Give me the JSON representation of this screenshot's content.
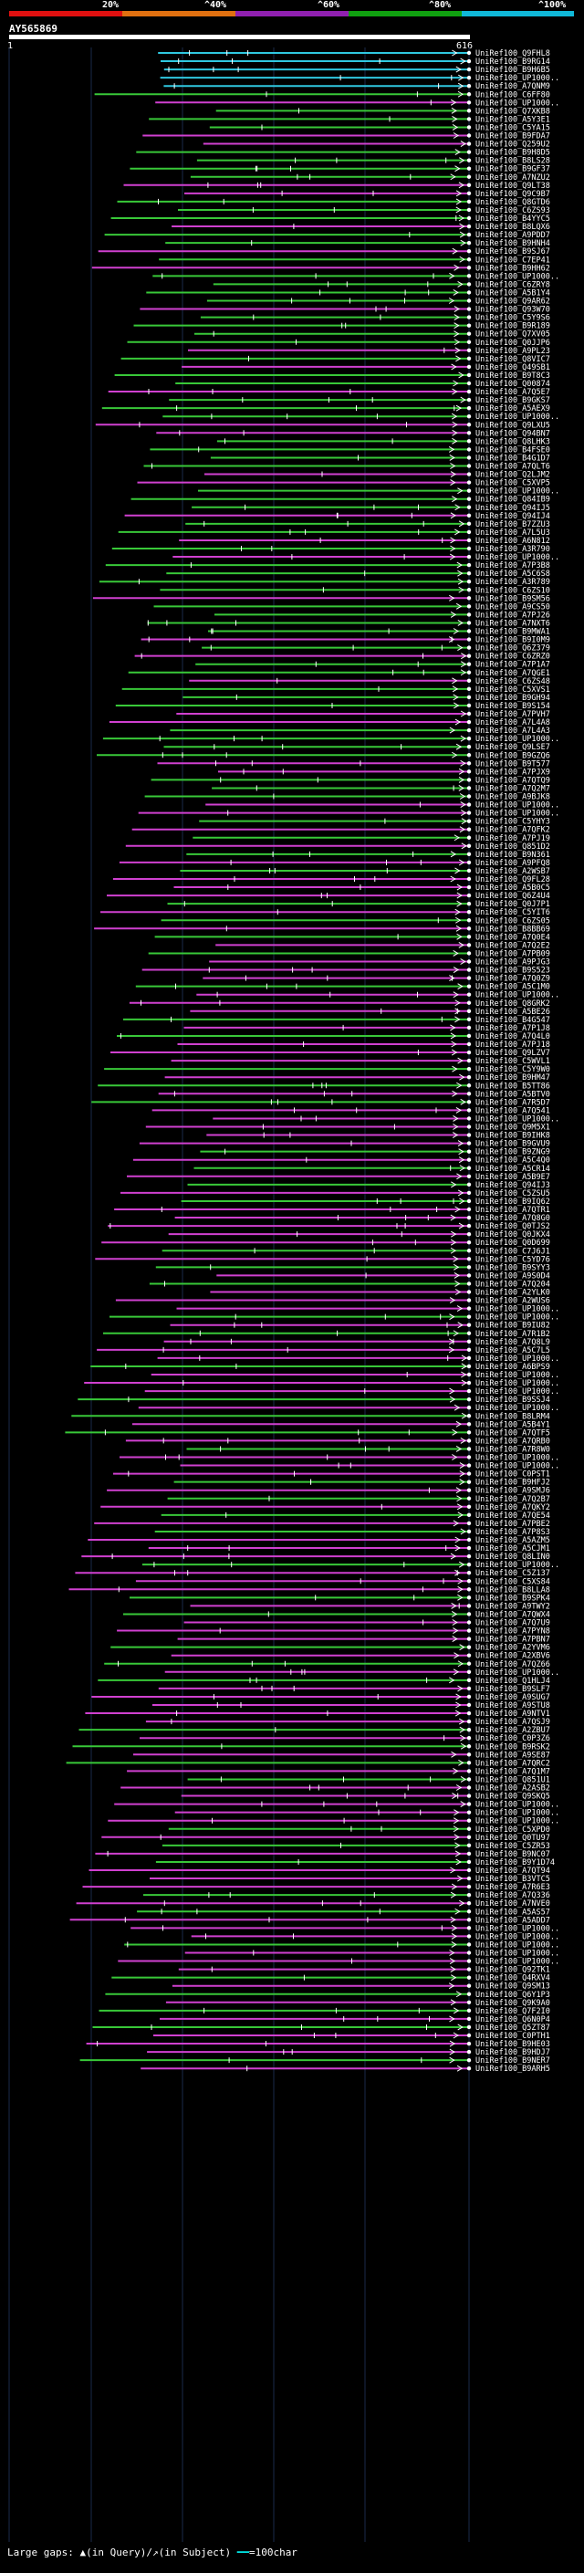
{
  "scale": {
    "labels": [
      "20%",
      "^40%",
      "^60%",
      "^80%",
      "^100%"
    ],
    "colors": [
      "#e01010",
      "#e07010",
      "#9020b0",
      "#10a010",
      "#10b8d8"
    ]
  },
  "query": {
    "name": "AY565869",
    "start": "1",
    "end": "616"
  },
  "hit_colors": {
    "cyan": "#30c8e0",
    "green": "#38c838",
    "magenta": "#d040d0",
    "white": "#ffffff"
  },
  "hits": [
    "UniRef100_Q9FHL8",
    "UniRef100_B9RG14",
    "UniRef100_B9H6B5",
    "UniRef100_UP1000..",
    "UniRef100_A7QNM9",
    "UniRef100_C6FF80",
    "UniRef100_UP1000..",
    "UniRef100_Q7XKB8",
    "UniRef100_A5Y3E1",
    "UniRef100_C5YA15",
    "UniRef100_B9FDA7",
    "UniRef100_Q259U2",
    "UniRef100_B9H8D5",
    "UniRef100_B8LS28",
    "UniRef100_B9GF37",
    "UniRef100_A7NZU2",
    "UniRef100_Q9LT38",
    "UniRef100_Q9C9B7",
    "UniRef100_Q8GTD6",
    "UniRef100_C6ZS93",
    "UniRef100_B4YYC5",
    "UniRef100_B8LQX6",
    "UniRef100_A9PDD7",
    "UniRef100_B9HNH4",
    "UniRef100_B9SJ67",
    "UniRef100_C7EP41",
    "UniRef100_B9HH62",
    "UniRef100_UP1000..",
    "UniRef100_C6ZRY8",
    "UniRef100_A5B1Y4",
    "UniRef100_Q9AR62",
    "UniRef100_Q93W70",
    "UniRef100_C5Y9S6",
    "UniRef100_B9R189",
    "UniRef100_Q7XV05",
    "UniRef100_Q0JJP6",
    "UniRef100_A9PL23",
    "UniRef100_Q8VIC7",
    "UniRef100_Q49SB1",
    "UniRef100_B9T8C3",
    "UniRef100_Q00874",
    "UniRef100_A7Q5E7",
    "UniRef100_B9GKS7",
    "UniRef100_A5AEX9",
    "UniRef100_UP1000..",
    "UniRef100_Q9LXU5",
    "UniRef100_Q94BN7",
    "UniRef100_Q8LHK3",
    "UniRef100_B4FSE0",
    "UniRef100_B4G1D7",
    "UniRef100_A7QLT6",
    "UniRef100_Q2LJM2",
    "UniRef100_C5XVP5",
    "UniRef100_UP1000..",
    "UniRef100_Q84IB9",
    "UniRef100_Q94IJ5",
    "UniRef100_Q94IJ4",
    "UniRef100_B7ZZU3",
    "UniRef100_A7L5U3",
    "UniRef100_A6N812",
    "UniRef100_A3R790",
    "UniRef100_UP1000..",
    "UniRef100_A7P3B8",
    "UniRef100_A5C6S8",
    "UniRef100_A3R789",
    "UniRef100_C6ZS10",
    "UniRef100_B9SM56",
    "UniRef100_A9CS50",
    "UniRef100_A7PJ26",
    "UniRef100_A7NXT6",
    "UniRef100_B9MWA1",
    "UniRef100_B9I0M9",
    "UniRef100_Q6Z379",
    "UniRef100_C6ZRZ0",
    "UniRef100_A7P1A7",
    "UniRef100_A7QGE1",
    "UniRef100_C6ZS48",
    "UniRef100_C5XVS1",
    "UniRef100_B9GH94",
    "UniRef100_B9S154",
    "UniRef100_A7PVH7",
    "UniRef100_A7L4A8",
    "UniRef100_A7L4A3",
    "UniRef100_UP1000..",
    "UniRef100_Q9LSE7",
    "UniRef100_B9GZQ6",
    "UniRef100_B9T577",
    "UniRef100_A7PJX9",
    "UniRef100_A7QTQ9",
    "UniRef100_A7Q2M7",
    "UniRef100_A9BJK8",
    "UniRef100_UP1000..",
    "UniRef100_UP1000..",
    "UniRef100_C5YHY3",
    "UniRef100_A7QFK2",
    "UniRef100_A7PJ19",
    "UniRef100_Q851D2",
    "UniRef100_B9N361",
    "UniRef100_A9PFQ8",
    "UniRef100_A2WSB7",
    "UniRef100_Q9FL28",
    "UniRef100_A5B0C5",
    "UniRef100_Q6Z4U4",
    "UniRef100_Q0J7P1",
    "UniRef100_C5YIT6",
    "UniRef100_C6ZS05",
    "UniRef100_B8BB69",
    "UniRef100_A7Q0E4",
    "UniRef100_A7Q2E2",
    "UniRef100_A7PB09",
    "UniRef100_A9PJG3",
    "UniRef100_B9S523",
    "UniRef100_A7Q0Z9",
    "UniRef100_A5C1M0",
    "UniRef100_UP1000..",
    "UniRef100_Q8GRK2",
    "UniRef100_A5BE26",
    "UniRef100_B4G547",
    "UniRef100_A7P1J8",
    "UniRef100_A7Q4L0",
    "UniRef100_A7PJ18",
    "UniRef100_Q9LZV7",
    "UniRef100_C5WVL1",
    "UniRef100_C5Y9W0",
    "UniRef100_B9HM47",
    "UniRef100_B5TT86",
    "UniRef100_A5BTV0",
    "UniRef100_A7R5D7",
    "UniRef100_A7Q541",
    "UniRef100_UP1000..",
    "UniRef100_Q9M5X1",
    "UniRef100_B9IHK8",
    "UniRef100_B9GVU9",
    "UniRef100_B9ZNG9",
    "UniRef100_A5C4Q0",
    "UniRef100_A5CR14",
    "UniRef100_A5B9E7",
    "UniRef100_Q94IJ3",
    "UniRef100_C5ZSU5",
    "UniRef100_B9IQ62",
    "UniRef100_A7QTR1",
    "UniRef100_A7Q8G0",
    "UniRef100_Q0TJS2",
    "UniRef100_Q0JKX4",
    "UniRef100_Q0D699",
    "UniRef100_C7J6J1",
    "UniRef100_C5YD76",
    "UniRef100_B9SYY3",
    "UniRef100_A9S0D4",
    "UniRef100_A7Q204",
    "UniRef100_A2YLK0",
    "UniRef100_A2WUS6",
    "UniRef100_UP1000..",
    "UniRef100_UP1000..",
    "UniRef100_B9IU82",
    "UniRef100_A7R1B2",
    "UniRef100_A7Q8L9",
    "UniRef100_A5C7L5",
    "UniRef100_UP1000..",
    "UniRef100_A6BPS9",
    "UniRef100_UP1000..",
    "UniRef100_UP1000..",
    "UniRef100_UP1000..",
    "UniRef100_B9SSJ4",
    "UniRef100_UP1000..",
    "UniRef100_B8LRM4",
    "UniRef100_A5B4Y1",
    "UniRef100_A7QTF5",
    "UniRef100_A7QRB0",
    "UniRef100_A7R8W0",
    "UniRef100_UP1000..",
    "UniRef100_UP1000..",
    "UniRef100_C0PST1",
    "UniRef100_B9HFJ2",
    "UniRef100_A9SMJ6",
    "UniRef100_A7Q2B7",
    "UniRef100_A7QKY2",
    "UniRef100_A7QE54",
    "UniRef100_A7PBE2",
    "UniRef100_A7P8S3",
    "UniRef100_A5AZM5",
    "UniRef100_A5CJM1",
    "UniRef100_Q8LIN0",
    "UniRef100_UP1000..",
    "UniRef100_C5Z137",
    "UniRef100_C5XS84",
    "UniRef100_B8LLA8",
    "UniRef100_B9SPK4",
    "UniRef100_A9TWY2",
    "UniRef100_A7QWX4",
    "UniRef100_A7Q7U9",
    "UniRef100_A7PYN8",
    "UniRef100_A7PBN7",
    "UniRef100_A2YVM6",
    "UniRef100_A2XBV6",
    "UniRef100_A7QZ66",
    "UniRef100_UP1000..",
    "UniRef100_Q1HLJ4",
    "UniRef100_B9SLF7",
    "UniRef100_A9SUG7",
    "UniRef100_A9STU8",
    "UniRef100_A9NTV1",
    "UniRef100_A7QSJ9",
    "UniRef100_A2ZBU7",
    "UniRef100_C0P3Z6",
    "UniRef100_B9RSK2",
    "UniRef100_A9SE87",
    "UniRef100_A7QRC2",
    "UniRef100_A7Q1M7",
    "UniRef100_Q851U1",
    "UniRef100_A2ASB2",
    "UniRef100_Q9SKQ5",
    "UniRef100_UP1000..",
    "UniRef100_UP1000..",
    "UniRef100_UP1000..",
    "UniRef100_C5XPD0",
    "UniRef100_Q0TU97",
    "UniRef100_C5ZR53",
    "UniRef100_B9NC07",
    "UniRef100_B9Y1D74",
    "UniRef100_A7QT94",
    "UniRef100_B3VTC5",
    "UniRef100_A7R6E3",
    "UniRef100_A7Q336",
    "UniRef100_A7NVE0",
    "UniRef100_A5AS57",
    "UniRef100_A5ADD7",
    "UniRef100_UP1000..",
    "UniRef100_UP1000..",
    "UniRef100_UP1000..",
    "UniRef100_UP1000..",
    "UniRef100_UP1000..",
    "UniRef100_Q92TK1",
    "UniRef100_Q4RXV4",
    "UniRef100_Q9SM13",
    "UniRef100_Q6Y1P3",
    "UniRef100_Q9K9A0",
    "UniRef100_Q7F2I0",
    "UniRef100_Q6N0P4",
    "UniRef100_Q5ZT87",
    "UniRef100_C0PTH1",
    "UniRef100_B9HE03",
    "UniRef100_B9HDJ7",
    "UniRef100_B9NER7",
    "UniRef100_B9ARH5"
  ],
  "footer": {
    "label": "Large gaps:",
    "legend_query": "(in Query)/",
    "legend_subject": "(in Subject)",
    "legend_scale": "=100char"
  }
}
